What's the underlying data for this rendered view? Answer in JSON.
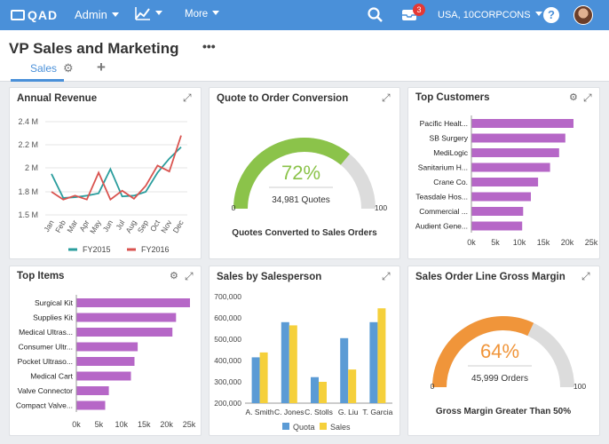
{
  "topbar": {
    "logo": "QAD",
    "admin_menu": "Admin",
    "more_menu": "More",
    "notification_count": "3",
    "company_selector": "USA, 10CORPCONS",
    "help_label": "?"
  },
  "header": {
    "title": "VP Sales and Marketing",
    "more_label": "•••",
    "tabs": [
      {
        "label": "Sales"
      }
    ]
  },
  "cards": {
    "annual_revenue": {
      "title": "Annual Revenue",
      "chart_data": {
        "type": "line",
        "x": [
          "Jan",
          "Feb",
          "Mar",
          "Apr",
          "May",
          "Jun",
          "Jul",
          "Aug",
          "Sep",
          "Oct",
          "Nov",
          "Dec"
        ],
        "series": [
          {
            "name": "FY2015",
            "color": "#2a9d9d",
            "values": [
              1.95,
              1.72,
              1.73,
              1.75,
              1.78,
              1.99,
              1.74,
              1.75,
              1.8,
              1.96,
              2.08,
              2.18
            ]
          },
          {
            "name": "FY2016",
            "color": "#d9534f",
            "values": [
              1.8,
              1.7,
              1.75,
              1.7,
              1.96,
              1.7,
              1.81,
              1.71,
              1.85,
              2.02,
              1.97,
              2.28
            ]
          }
        ],
        "yticks": [
          "2.4 M",
          "2.2 M",
          "2 M",
          "1.8 M",
          "1.5 M"
        ],
        "ylim": [
          1.5,
          2.4
        ],
        "legend": "bottom"
      }
    },
    "quote_conversion": {
      "title": "Quote to Order Conversion",
      "gauge": {
        "value": 72,
        "display": "72%",
        "subtext": "34,981 Quotes",
        "min_label": "0",
        "max_label": "100",
        "color": "#8bc34a"
      },
      "caption": "Quotes Converted to Sales Orders"
    },
    "top_customers": {
      "title": "Top Customers",
      "chart_data": {
        "type": "bar",
        "categories": [
          "Pacific Healt...",
          "SB Surgery",
          "MediLogic",
          "Sanitarium H...",
          "Crane Co.",
          "Teasdale Hos...",
          "Commercial ...",
          "Audient Gene..."
        ],
        "values": [
          21300,
          19600,
          18300,
          16400,
          13900,
          12400,
          10800,
          10600
        ],
        "xticks": [
          "0k",
          "5k",
          "10k",
          "15k",
          "20k",
          "25k"
        ],
        "xlim": [
          0,
          25000
        ],
        "color": "#b667c7"
      }
    },
    "top_items": {
      "title": "Top Items",
      "chart_data": {
        "type": "bar",
        "categories": [
          "Surgical Kit",
          "Supplies Kit",
          "Medical Ultras...",
          "Consumer Ultr...",
          "Pocket Ultraso...",
          "Medical Cart",
          "Valve Connector",
          "Compact Valve..."
        ],
        "values": [
          25200,
          22100,
          21300,
          13600,
          12900,
          12100,
          7200,
          6400
        ],
        "xticks": [
          "0k",
          "5k",
          "10k",
          "15k",
          "20k",
          "25k"
        ],
        "xlim": [
          0,
          25000
        ],
        "color": "#b667c7"
      }
    },
    "sales_by_salesperson": {
      "title": "Sales by Salesperson",
      "chart_data": {
        "type": "bar",
        "categories": [
          "A. Smith",
          "C. Jones",
          "C. Stolls",
          "G. Liu",
          "T. Garcia"
        ],
        "series": [
          {
            "name": "Quota",
            "color": "#5b9bd5",
            "values": [
              415000,
              580000,
              322000,
              505000,
              580000
            ]
          },
          {
            "name": "Sales",
            "color": "#f5d03b",
            "values": [
              438000,
              565000,
              300000,
              358000,
              645000
            ]
          }
        ],
        "yticks": [
          "700,000",
          "600,000",
          "500,000",
          "400,000",
          "300,000",
          "200,000"
        ],
        "ylim": [
          200000,
          700000
        ],
        "legend": "bottom"
      }
    },
    "gross_margin": {
      "title": "Sales Order Line Gross Margin",
      "gauge": {
        "value": 64,
        "display": "64%",
        "subtext": "45,999 Orders",
        "min_label": "0",
        "max_label": "100",
        "color": "#f0953a"
      },
      "caption": "Gross Margin Greater Than 50%"
    }
  }
}
